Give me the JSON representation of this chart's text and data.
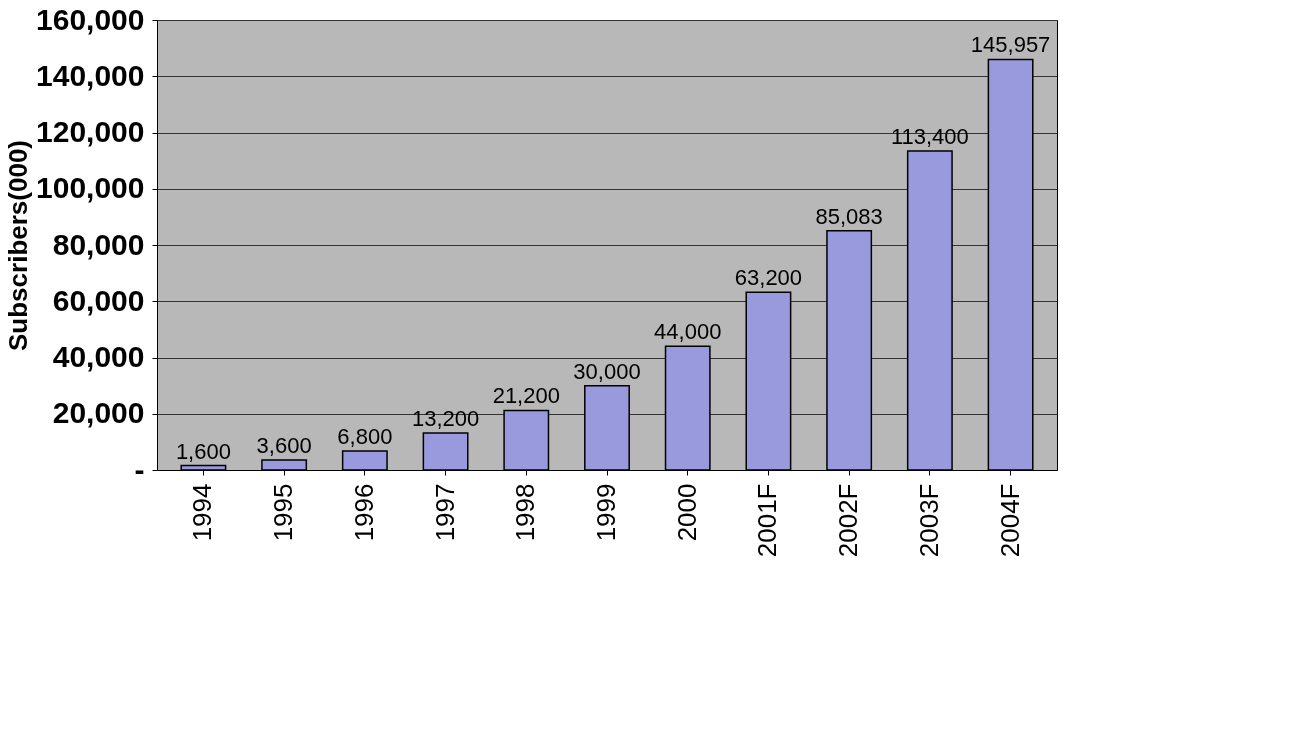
{
  "chart_data": {
    "type": "bar",
    "ylabel": "Subscribers(000)",
    "categories": [
      "1994",
      "1995",
      "1996",
      "1997",
      "1998",
      "1999",
      "2000",
      "2001F",
      "2002F",
      "2003F",
      "2004F"
    ],
    "values": [
      1600,
      3600,
      6800,
      13200,
      21200,
      30000,
      44000,
      63200,
      85083,
      113400,
      145957
    ],
    "color": "#9999dd",
    "value_labels": [
      "1,600",
      "3,600",
      "6,800",
      "13,200",
      "21,200",
      "30,000",
      "44,000",
      "63,200",
      "85,083",
      "113,400",
      "145,957"
    ],
    "ylim": [
      0,
      160000
    ],
    "yticks": [
      {
        "value": 0,
        "label": "-"
      },
      {
        "value": 20000,
        "label": "20,000"
      },
      {
        "value": 40000,
        "label": "40,000"
      },
      {
        "value": 60000,
        "label": "60,000"
      },
      {
        "value": 80000,
        "label": "80,000"
      },
      {
        "value": 100000,
        "label": "100,000"
      },
      {
        "value": 120000,
        "label": "120,000"
      },
      {
        "value": 140000,
        "label": "140,000"
      },
      {
        "value": 160000,
        "label": "160,000"
      }
    ],
    "grid": "y"
  }
}
